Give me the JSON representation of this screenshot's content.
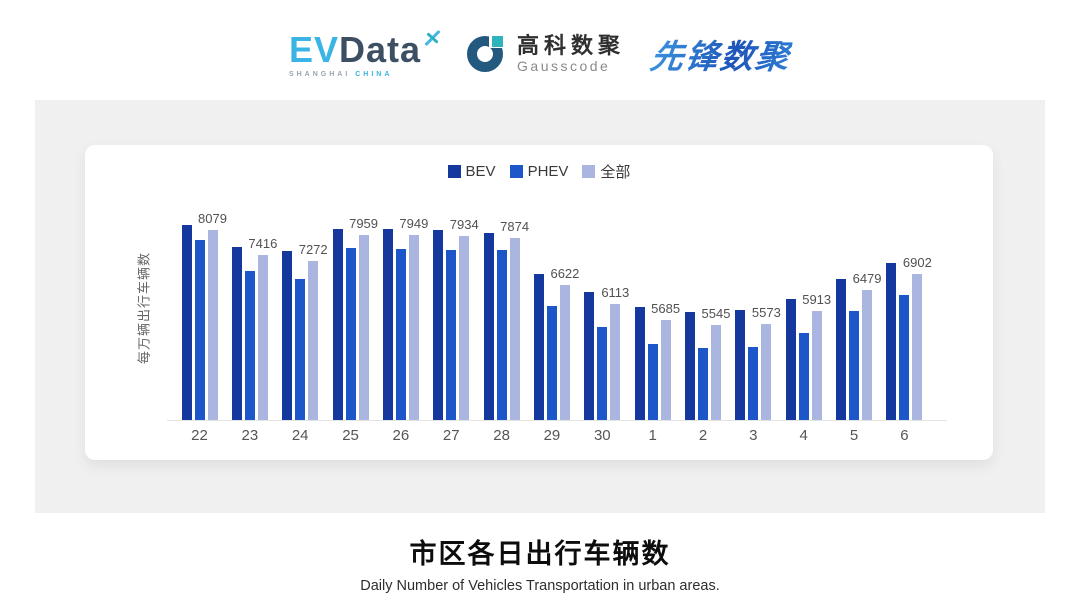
{
  "header": {
    "evdata": {
      "ev": "EV",
      "data": "Data",
      "sub1": "SHANGHAI",
      "sub2": "CHINA"
    },
    "gausscode": {
      "cn": "高科数聚",
      "en": "Gausscode"
    },
    "pioneer": {
      "text": "先锋数聚"
    }
  },
  "chart_data": {
    "type": "bar",
    "title": "市区各日出行车辆数",
    "subtitle": "Daily Number of Vehicles Transportation in urban areas.",
    "ylabel": "每万辆出行车辆数",
    "ylim": [
      3000,
      9000
    ],
    "grid": false,
    "legend_position": "top",
    "categories": [
      "22",
      "23",
      "24",
      "25",
      "26",
      "27",
      "28",
      "29",
      "30",
      "1",
      "2",
      "3",
      "4",
      "5",
      "6"
    ],
    "series": [
      {
        "name": "BEV",
        "color": "#14389d",
        "show_labels": false,
        "values": [
          8220,
          7635,
          7527,
          8110,
          8105,
          8100,
          8010,
          6920,
          6425,
          6035,
          5905,
          5955,
          6245,
          6785,
          7215
        ]
      },
      {
        "name": "PHEV",
        "color": "#1d56c9",
        "show_labels": false,
        "values": [
          7835,
          6980,
          6765,
          7620,
          7590,
          7565,
          7545,
          6065,
          5500,
          5035,
          4940,
          4960,
          5320,
          5930,
          6360
        ]
      },
      {
        "name": "全部",
        "color": "#aab5e0",
        "show_labels": true,
        "values": [
          8079,
          7416,
          7272,
          7959,
          7949,
          7934,
          7874,
          6622,
          6113,
          5685,
          5545,
          5573,
          5913,
          6479,
          6902
        ]
      }
    ],
    "label_color": "#515151",
    "axis_line_color": "#e4e4e4"
  },
  "footer": {
    "title": "市区各日出行车辆数",
    "subtitle": "Daily Number of Vehicles Transportation in urban areas."
  }
}
